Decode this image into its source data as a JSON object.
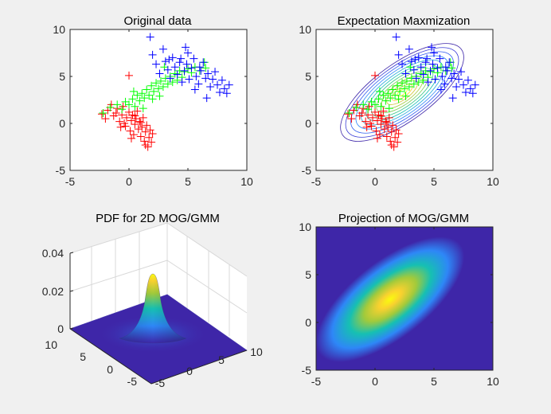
{
  "chart_data": [
    {
      "type": "scatter",
      "title": "Original data",
      "xlim": [
        -5,
        10
      ],
      "ylim": [
        -5,
        10
      ],
      "x_ticks": [
        -5,
        0,
        5,
        10
      ],
      "y_ticks": [
        -5,
        0,
        5,
        10
      ],
      "grid": false,
      "series": [
        {
          "color": "#ff0000",
          "marker": "+",
          "points": [
            [
              -2.3,
              1.0
            ],
            [
              -2.0,
              0.5
            ],
            [
              -1.8,
              1.4
            ],
            [
              -1.5,
              2.0
            ],
            [
              -1.3,
              0.8
            ],
            [
              -1.0,
              1.6
            ],
            [
              -0.8,
              0.2
            ],
            [
              -0.6,
              0.9
            ],
            [
              -0.5,
              1.8
            ],
            [
              -0.3,
              -0.3
            ],
            [
              -0.2,
              0.6
            ],
            [
              0.0,
              1.2
            ],
            [
              0.0,
              5.1
            ],
            [
              0.1,
              -0.8
            ],
            [
              0.2,
              0.3
            ],
            [
              0.3,
              0.9
            ],
            [
              0.4,
              -1.2
            ],
            [
              0.5,
              -0.1
            ],
            [
              0.6,
              0.5
            ],
            [
              0.8,
              -0.6
            ],
            [
              0.9,
              0.2
            ],
            [
              1.0,
              -1.4
            ],
            [
              1.1,
              -0.4
            ],
            [
              1.2,
              0.6
            ],
            [
              1.3,
              -1.9
            ],
            [
              1.4,
              -0.9
            ],
            [
              1.5,
              -0.2
            ],
            [
              1.6,
              -2.5
            ],
            [
              1.7,
              -1.5
            ],
            [
              1.8,
              -0.7
            ],
            [
              1.9,
              -2.0
            ],
            [
              2.0,
              -1.1
            ],
            [
              -0.4,
              0.0
            ],
            [
              0.7,
              1.3
            ],
            [
              -1.1,
              1.1
            ],
            [
              0.2,
              -1.6
            ],
            [
              1.0,
              0.1
            ],
            [
              -0.7,
              -0.4
            ],
            [
              1.4,
              -2.3
            ],
            [
              0.5,
              0.8
            ]
          ]
        },
        {
          "color": "#00ff00",
          "marker": "+",
          "points": [
            [
              -2.2,
              1.1
            ],
            [
              -1.6,
              1.7
            ],
            [
              -1.0,
              2.0
            ],
            [
              -0.6,
              1.5
            ],
            [
              -0.3,
              2.3
            ],
            [
              0.0,
              2.0
            ],
            [
              0.3,
              2.6
            ],
            [
              0.5,
              1.8
            ],
            [
              0.7,
              3.0
            ],
            [
              0.9,
              2.4
            ],
            [
              1.1,
              3.2
            ],
            [
              1.3,
              2.7
            ],
            [
              1.5,
              3.6
            ],
            [
              1.7,
              3.0
            ],
            [
              1.9,
              4.0
            ],
            [
              2.1,
              3.4
            ],
            [
              2.3,
              4.3
            ],
            [
              2.5,
              3.7
            ],
            [
              2.7,
              4.5
            ],
            [
              2.9,
              3.9
            ],
            [
              3.1,
              4.8
            ],
            [
              3.3,
              4.2
            ],
            [
              3.5,
              5.0
            ],
            [
              3.7,
              4.4
            ],
            [
              3.9,
              5.3
            ],
            [
              4.1,
              4.6
            ],
            [
              4.3,
              5.6
            ],
            [
              4.5,
              4.9
            ],
            [
              4.7,
              5.5
            ],
            [
              5.0,
              5.8
            ],
            [
              5.3,
              5.4
            ],
            [
              5.6,
              6.0
            ],
            [
              6.0,
              5.6
            ],
            [
              6.4,
              6.5
            ],
            [
              6.5,
              5.9
            ],
            [
              1.2,
              1.6
            ],
            [
              2.0,
              2.6
            ],
            [
              0.4,
              3.4
            ],
            [
              2.6,
              2.9
            ],
            [
              3.0,
              6.0
            ]
          ]
        },
        {
          "color": "#0000ff",
          "marker": "+",
          "points": [
            [
              1.8,
              9.2
            ],
            [
              2.0,
              7.3
            ],
            [
              2.3,
              6.3
            ],
            [
              2.6,
              5.3
            ],
            [
              2.9,
              7.9
            ],
            [
              3.1,
              6.6
            ],
            [
              3.3,
              5.7
            ],
            [
              3.5,
              4.8
            ],
            [
              3.7,
              7.0
            ],
            [
              3.9,
              6.0
            ],
            [
              4.1,
              5.2
            ],
            [
              4.3,
              6.5
            ],
            [
              4.5,
              4.4
            ],
            [
              4.7,
              5.6
            ],
            [
              4.9,
              6.3
            ],
            [
              5.1,
              4.7
            ],
            [
              5.3,
              5.9
            ],
            [
              5.5,
              6.9
            ],
            [
              5.7,
              5.0
            ],
            [
              5.9,
              4.2
            ],
            [
              6.1,
              5.6
            ],
            [
              6.3,
              6.5
            ],
            [
              6.5,
              4.8
            ],
            [
              6.7,
              5.3
            ],
            [
              6.9,
              3.9
            ],
            [
              7.1,
              4.7
            ],
            [
              7.3,
              5.5
            ],
            [
              7.5,
              4.1
            ],
            [
              7.7,
              3.3
            ],
            [
              7.9,
              4.6
            ],
            [
              8.1,
              3.7
            ],
            [
              8.3,
              3.2
            ],
            [
              8.5,
              4.1
            ],
            [
              5.0,
              7.5
            ],
            [
              4.4,
              6.9
            ],
            [
              6.0,
              6.0
            ],
            [
              3.4,
              6.8
            ],
            [
              5.6,
              3.6
            ],
            [
              6.6,
              2.7
            ],
            [
              4.8,
              8.1
            ]
          ]
        }
      ]
    },
    {
      "type": "scatter",
      "title": "Expectation Maxmization",
      "xlim": [
        -5,
        10
      ],
      "ylim": [
        -5,
        10
      ],
      "x_ticks": [
        -5,
        0,
        5,
        10
      ],
      "y_ticks": [
        -5,
        0,
        5,
        10
      ],
      "grid": false,
      "contour_center": [
        2.3,
        3.3
      ],
      "contour_levels": 12
    },
    {
      "type": "surface",
      "title": "PDF for 2D MOG/GMM",
      "zlim": [
        0,
        0.04
      ],
      "z_ticks": [
        "0",
        "0.02",
        "0.04"
      ],
      "x_ticks": [
        "-5",
        "0",
        "5",
        "10"
      ],
      "y_ticks": [
        "10",
        "5",
        "0",
        "-5"
      ],
      "peak": 0.03
    },
    {
      "type": "heatmap",
      "title": "Projection of MOG/GMM",
      "xlim": [
        -5,
        10
      ],
      "ylim": [
        -5,
        10
      ],
      "x_ticks": [
        -5,
        0,
        5,
        10
      ],
      "y_ticks": [
        -5,
        0,
        5,
        10
      ],
      "center": [
        2.3,
        3.3
      ],
      "colors": [
        "#3e26a8",
        "#2e87f7",
        "#16c0b2",
        "#a2ca3b",
        "#f9d12f",
        "#f9fb0e"
      ]
    }
  ]
}
